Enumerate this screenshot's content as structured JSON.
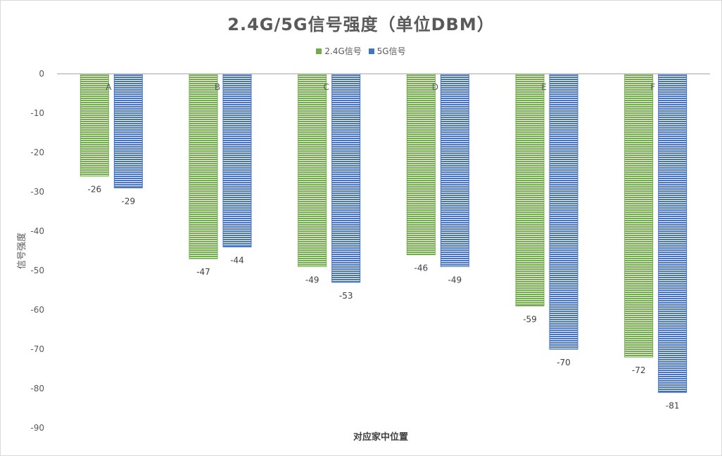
{
  "chart_data": {
    "type": "bar",
    "title": "2.4G/5G信号强度（单位DBM）",
    "xlabel": "对应家中位置",
    "ylabel": "信号强度",
    "categories": [
      "A",
      "B",
      "C",
      "D",
      "E",
      "F"
    ],
    "ylim": [
      -90,
      0
    ],
    "yticks": [
      0,
      -10,
      -20,
      -30,
      -40,
      -50,
      -60,
      -70,
      -80,
      -90
    ],
    "grid": false,
    "legend_position": "top",
    "series": [
      {
        "name": "2.4G信号",
        "color": "#70ad47",
        "values": [
          -26,
          -47,
          -49,
          -46,
          -59,
          -72
        ]
      },
      {
        "name": "5G信号",
        "color": "#4472c4",
        "values": [
          -29,
          -44,
          -53,
          -49,
          -70,
          -81
        ]
      }
    ]
  }
}
